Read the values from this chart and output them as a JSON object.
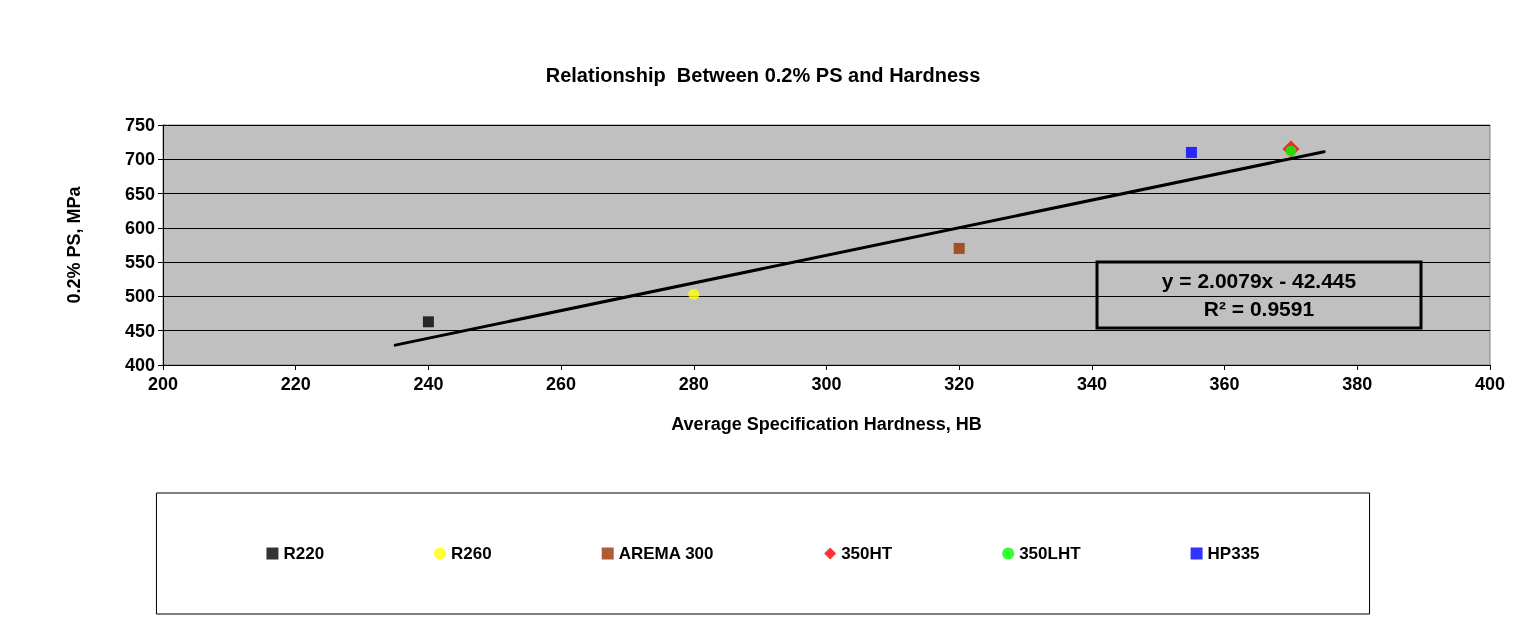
{
  "chart_data": {
    "type": "scatter",
    "title": "Relationship  Between 0.2% PS and Hardness",
    "xlabel": "Average Specification Hardness, HB",
    "ylabel": "0.2% PS, MPa",
    "series": [
      {
        "name": "R220",
        "color": "#000000",
        "marker": "square",
        "x": [
          240
        ],
        "values": [
          463
        ]
      },
      {
        "name": "R260",
        "color": "#ffff00",
        "marker": "circle",
        "x": [
          280
        ],
        "values": [
          503
        ]
      },
      {
        "name": "AREMA 300",
        "color": "#993300",
        "marker": "square",
        "x": [
          320
        ],
        "values": [
          570
        ]
      },
      {
        "name": "350HT",
        "color": "#ff0000",
        "marker": "diamond",
        "x": [
          370
        ],
        "values": [
          715
        ]
      },
      {
        "name": "350LHT",
        "color": "#00ff00",
        "marker": "circle",
        "x": [
          370
        ],
        "values": [
          712
        ]
      },
      {
        "name": "HP335",
        "color": "#0000ff",
        "marker": "square",
        "x": [
          355
        ],
        "values": [
          710
        ]
      },
      {
        "type": "line",
        "color": "#000000",
        "marker": "none",
        "line_style": "solid",
        "x": [
          235,
          375
        ],
        "values": [
          429,
          711
        ]
      }
    ],
    "annotations": [
      "y = 2.0079x - 42.445",
      "R² = 0.9591"
    ],
    "xlim": [
      200,
      400
    ],
    "xticks": [
      200,
      220,
      240,
      260,
      280,
      300,
      320,
      340,
      360,
      380,
      400
    ],
    "ylim": [
      400,
      750
    ],
    "yticks": [
      400,
      450,
      500,
      550,
      600,
      650,
      700,
      750
    ],
    "grid": "y",
    "legend": "bottom"
  }
}
